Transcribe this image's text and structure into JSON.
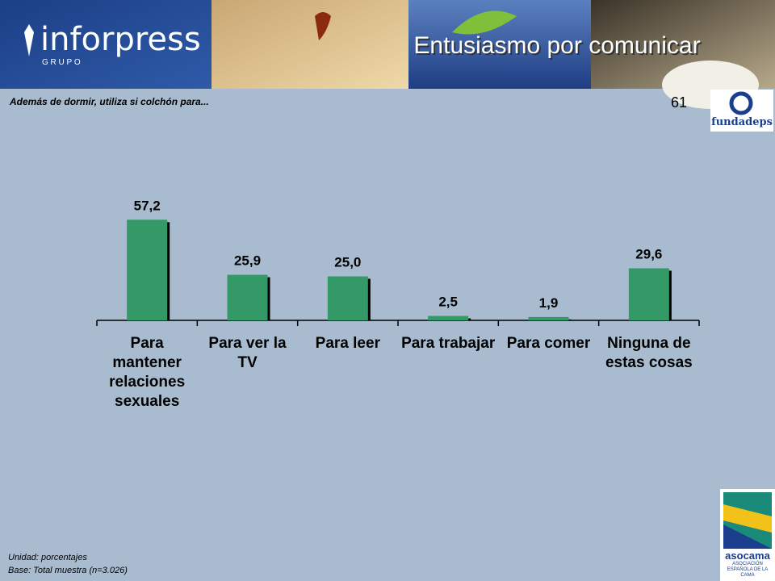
{
  "header": {
    "logo": "inforpress",
    "logo_sub": "G R U P O",
    "title": "Entusiasmo por comunicar"
  },
  "page_number": "61",
  "logos": {
    "fundadeps": "fundadeps",
    "asocama": "asocama",
    "asocama_sub": "ASOCIACIÓN ESPAÑOLA DE LA CAMA"
  },
  "chart_data": {
    "type": "bar",
    "title": "Además de dormir, utiliza si colchón para...",
    "categories": [
      "Para mantener relaciones sexuales",
      "Para ver la TV",
      "Para leer",
      "Para trabajar",
      "Para comer",
      "Ninguna de estas cosas"
    ],
    "values": [
      57.2,
      25.9,
      25.0,
      2.5,
      1.9,
      29.6
    ],
    "value_labels": [
      "57,2",
      "25,9",
      "25,0",
      "2,5",
      "1,9",
      "29,6"
    ],
    "color": "#339966"
  },
  "footer": {
    "unit": "Unidad: porcentajes",
    "base": "Base: Total muestra (n=3.026)"
  }
}
